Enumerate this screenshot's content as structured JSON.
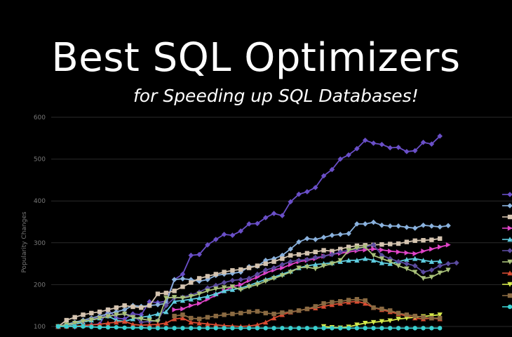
{
  "header": {
    "title": "Best SQL Optimizers",
    "subtitle": "for Speeding up SQL Databases!"
  },
  "chart_data": {
    "type": "line",
    "ylabel": "Popularity Changes",
    "ylim": [
      100,
      600
    ],
    "yticks": [
      100,
      200,
      300,
      400,
      500,
      600
    ],
    "grid": true,
    "legend": "right",
    "x": [
      1,
      2,
      3,
      4,
      5,
      6,
      7,
      8,
      9,
      10,
      11,
      12,
      13,
      14,
      15,
      16,
      17,
      18,
      19,
      20,
      21,
      22,
      23,
      24,
      25,
      26,
      27,
      28,
      29,
      30,
      31,
      32,
      33,
      34,
      35,
      36,
      37,
      38,
      39,
      40,
      41,
      42,
      43,
      44,
      45,
      46,
      47,
      48,
      49,
      50,
      51,
      52,
      53,
      54
    ],
    "series": [
      {
        "color": "#6a4fc8",
        "marker": "diamond",
        "values": [
          100,
          102,
          99,
          101,
          104,
          106,
          140,
          120,
          118,
          130,
          128,
          159,
          157,
          160,
          212,
          225,
          270,
          272,
          295,
          308,
          320,
          318,
          328,
          345,
          346,
          360,
          370,
          365,
          398,
          416,
          422,
          432,
          460,
          475,
          500,
          510,
          525,
          545,
          538,
          535,
          527,
          528,
          518,
          520,
          540,
          536,
          555,
          null,
          null,
          null,
          null,
          null,
          null,
          null
        ]
      },
      {
        "color": "#8ab2de",
        "marker": "diamond",
        "values": [
          100,
          105,
          110,
          115,
          120,
          125,
          130,
          135,
          140,
          150,
          148,
          150,
          152,
          155,
          212,
          214,
          212,
          208,
          212,
          222,
          225,
          227,
          230,
          243,
          244,
          258,
          262,
          270,
          285,
          302,
          310,
          308,
          313,
          318,
          320,
          322,
          345,
          345,
          349,
          342,
          340,
          340,
          337,
          335,
          342,
          340,
          338,
          341,
          null,
          null,
          null,
          null,
          null,
          null
        ]
      },
      {
        "color": "#d5c4b0",
        "marker": "square",
        "values": [
          100,
          115,
          122,
          128,
          132,
          135,
          140,
          145,
          150,
          147,
          145,
          150,
          178,
          180,
          185,
          195,
          205,
          215,
          220,
          225,
          230,
          234,
          236,
          240,
          245,
          250,
          255,
          262,
          270,
          272,
          275,
          278,
          282,
          280,
          285,
          290,
          293,
          294,
          295,
          296,
          297,
          298,
          302,
          305,
          306,
          307,
          310,
          null,
          null,
          null,
          null,
          null,
          null,
          null
        ]
      },
      {
        "color": "#e044c8",
        "marker": "triangle-right",
        "values": [
          null,
          null,
          null,
          null,
          null,
          null,
          null,
          null,
          null,
          null,
          null,
          null,
          null,
          null,
          140,
          142,
          150,
          155,
          165,
          175,
          185,
          195,
          200,
          210,
          218,
          228,
          235,
          240,
          248,
          255,
          258,
          262,
          268,
          273,
          275,
          278,
          281,
          283,
          285,
          283,
          280,
          278,
          276,
          274,
          280,
          285,
          290,
          295,
          null,
          null,
          null,
          null,
          null,
          null
        ]
      },
      {
        "color": "#5fcde0",
        "marker": "triangle-up",
        "values": [
          100,
          102,
          105,
          110,
          115,
          120,
          125,
          115,
          112,
          118,
          122,
          125,
          130,
          135,
          160,
          162,
          165,
          168,
          172,
          178,
          185,
          188,
          192,
          198,
          205,
          212,
          218,
          225,
          232,
          240,
          245,
          248,
          250,
          252,
          255,
          258,
          258,
          262,
          258,
          252,
          250,
          255,
          260,
          262,
          258,
          255,
          256,
          null,
          null,
          null,
          null,
          null,
          null,
          null
        ]
      },
      {
        "color": "#5a4a9e",
        "marker": "diamond",
        "values": [
          100,
          103,
          108,
          112,
          118,
          122,
          125,
          128,
          130,
          126,
          110,
          112,
          114,
          150,
          168,
          170,
          175,
          182,
          192,
          198,
          205,
          210,
          212,
          215,
          225,
          235,
          240,
          248,
          255,
          258,
          260,
          265,
          268,
          272,
          278,
          282,
          285,
          290,
          295,
          270,
          262,
          255,
          250,
          245,
          230,
          235,
          245,
          250,
          252,
          null,
          null,
          null,
          null,
          null
        ]
      },
      {
        "color": "#a9c27a",
        "marker": "triangle-down",
        "values": [
          100,
          104,
          108,
          112,
          116,
          120,
          124,
          128,
          130,
          122,
          118,
          115,
          112,
          168,
          170,
          168,
          172,
          178,
          185,
          190,
          193,
          195,
          188,
          195,
          200,
          208,
          215,
          222,
          230,
          240,
          242,
          238,
          245,
          250,
          258,
          282,
          288,
          290,
          270,
          262,
          255,
          245,
          238,
          230,
          215,
          218,
          228,
          235,
          null,
          null,
          null,
          null,
          null,
          null
        ]
      },
      {
        "color": "#d84c32",
        "marker": "triangle-up",
        "values": [
          100,
          100,
          101,
          102,
          104,
          105,
          108,
          110,
          112,
          105,
          103,
          104,
          105,
          108,
          118,
          120,
          110,
          108,
          106,
          104,
          102,
          101,
          100,
          101,
          104,
          110,
          120,
          128,
          134,
          138,
          142,
          144,
          148,
          152,
          155,
          158,
          160,
          155,
          145,
          140,
          135,
          130,
          125,
          120,
          118,
          120,
          118,
          null,
          null,
          null,
          null,
          null,
          null,
          null
        ]
      },
      {
        "color": "#d4e84a",
        "marker": "triangle-down",
        "values": [
          null,
          null,
          null,
          null,
          null,
          null,
          null,
          null,
          null,
          null,
          null,
          null,
          null,
          null,
          null,
          null,
          null,
          null,
          null,
          null,
          null,
          null,
          null,
          null,
          null,
          null,
          null,
          null,
          null,
          null,
          null,
          null,
          100,
          98,
          97,
          99,
          104,
          108,
          110,
          112,
          114,
          118,
          120,
          122,
          124,
          126,
          128,
          null,
          null,
          null,
          null,
          null,
          null,
          null
        ]
      },
      {
        "color": "#8a6a42",
        "marker": "square",
        "values": [
          null,
          null,
          null,
          null,
          null,
          null,
          null,
          null,
          null,
          null,
          null,
          null,
          null,
          null,
          125,
          128,
          120,
          118,
          122,
          125,
          128,
          130,
          132,
          135,
          136,
          132,
          130,
          133,
          135,
          138,
          142,
          148,
          155,
          158,
          160,
          163,
          165,
          162,
          145,
          142,
          138,
          132,
          128,
          125,
          122,
          120,
          120,
          null,
          null,
          null,
          null,
          null,
          null,
          null
        ]
      },
      {
        "color": "#3ad0d0",
        "marker": "circle",
        "values": [
          100,
          100,
          100,
          100,
          99,
          98,
          98,
          98,
          97,
          97,
          97,
          96,
          96,
          96,
          96,
          96,
          96,
          96,
          96,
          96,
          96,
          96,
          96,
          96,
          96,
          96,
          96,
          96,
          96,
          96,
          96,
          96,
          96,
          96,
          96,
          96,
          96,
          96,
          96,
          96,
          96,
          96,
          96,
          96,
          96,
          96,
          96,
          null,
          null,
          null,
          null,
          null,
          null,
          null
        ]
      }
    ]
  }
}
